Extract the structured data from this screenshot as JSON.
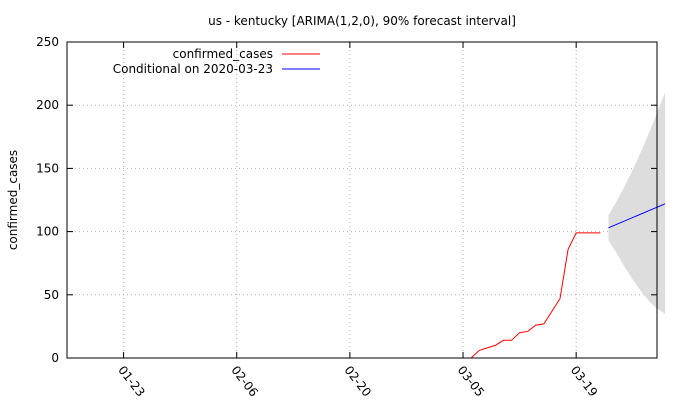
{
  "chart_data": {
    "type": "line",
    "title": "us - kentucky [ARIMA(1,2,0), 90% forecast interval]",
    "xlabel": "",
    "ylabel": "confirmed_cases",
    "ylim": [
      0,
      250
    ],
    "yticks": [
      0,
      50,
      100,
      150,
      200,
      250
    ],
    "x_range_days_from_2020_01_16": [
      0,
      73
    ],
    "xtick_labels": [
      "01-23",
      "02-06",
      "02-20",
      "03-05",
      "03-19"
    ],
    "xtick_dates": [
      "2020-01-23",
      "2020-02-06",
      "2020-02-20",
      "2020-03-05",
      "2020-03-19"
    ],
    "grid": true,
    "legend_placement": "top-left",
    "series": [
      {
        "name": "confirmed_cases",
        "color": "#ff0000",
        "x": [
          "2020-03-06",
          "2020-03-07",
          "2020-03-08",
          "2020-03-09",
          "2020-03-10",
          "2020-03-11",
          "2020-03-12",
          "2020-03-13",
          "2020-03-14",
          "2020-03-15",
          "2020-03-16",
          "2020-03-17",
          "2020-03-18",
          "2020-03-19",
          "2020-03-20",
          "2020-03-21",
          "2020-03-22"
        ],
        "values": [
          0,
          6,
          8,
          10,
          14,
          14,
          20,
          21,
          26,
          27,
          37,
          47,
          86,
          99,
          99,
          99,
          99
        ]
      },
      {
        "name": "Conditional on 2020-03-23",
        "color": "#0000ff",
        "x": [
          "2020-03-23",
          "2020-03-30"
        ],
        "values": [
          103,
          122
        ]
      }
    ],
    "forecast_interval": {
      "color": "#dddddd",
      "x": [
        "2020-03-23",
        "2020-03-24",
        "2020-03-25",
        "2020-03-26",
        "2020-03-27",
        "2020-03-28",
        "2020-03-29",
        "2020-03-30"
      ],
      "lower": [
        93,
        83,
        72,
        62,
        53,
        45,
        39,
        35
      ],
      "upper": [
        113,
        124,
        136,
        149,
        163,
        178,
        194,
        210
      ]
    }
  }
}
